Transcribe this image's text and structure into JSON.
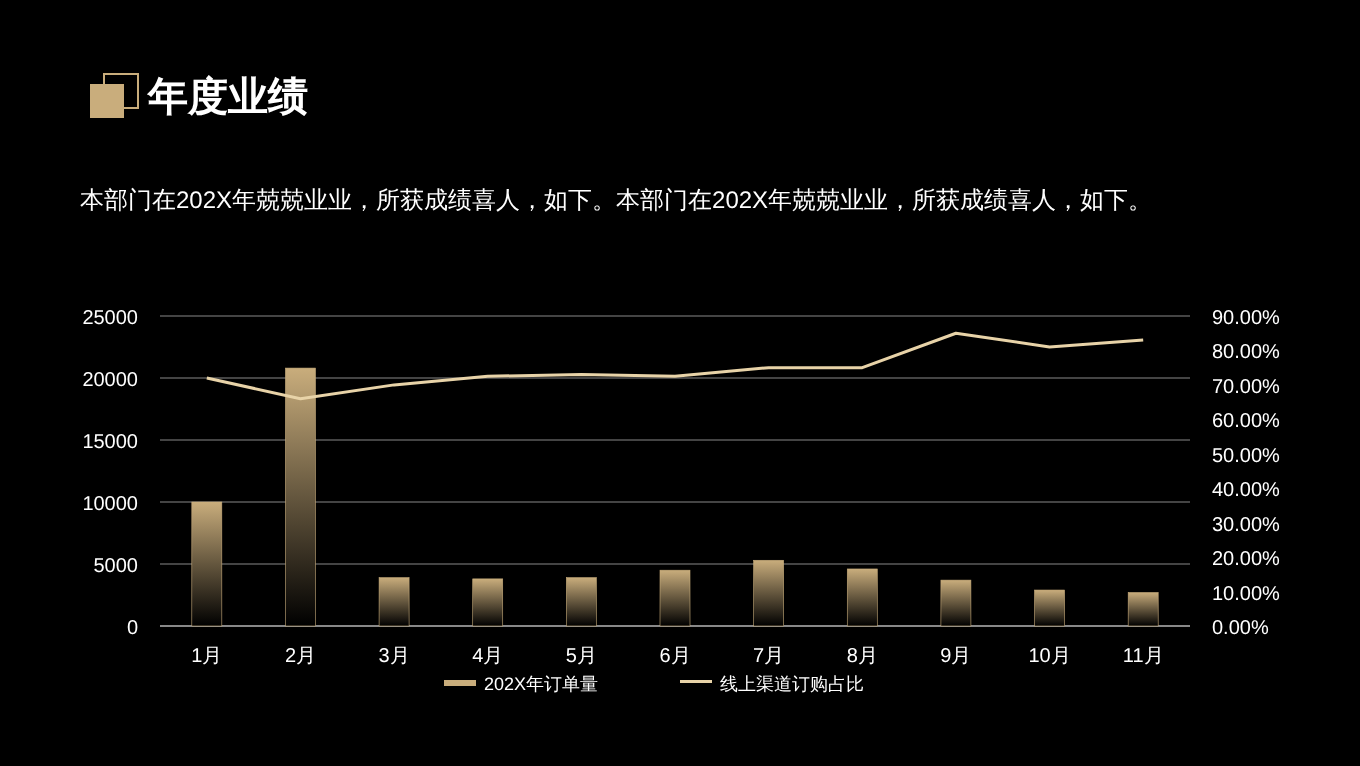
{
  "chart_data": {
    "type": "bar",
    "title": "年度业绩",
    "subtitle": "本部门在202X年兢兢业业，所获成绩喜人，如下。本部门在202X年兢兢业业，所获成绩喜人，如下。",
    "categories": [
      "1月",
      "2月",
      "3月",
      "4月",
      "5月",
      "6月",
      "7月",
      "8月",
      "9月",
      "10月",
      "11月"
    ],
    "series": [
      {
        "name": "202X年订单量",
        "color": "#c9ad7c",
        "values": [
          10000,
          20800,
          3900,
          3800,
          3900,
          4500,
          5300,
          4600,
          3700,
          2900,
          2700
        ]
      },
      {
        "name": "线上渠道订购占比",
        "type": "line",
        "axis": "y2",
        "color": "#e8d3a8",
        "values": [
          72,
          66,
          70,
          72.5,
          73,
          72.5,
          75,
          75,
          85,
          81,
          83
        ]
      }
    ],
    "ylim": [
      0,
      25000
    ],
    "yticks": [
      0,
      5000,
      10000,
      15000,
      20000,
      25000
    ],
    "y2lim": [
      0,
      90
    ],
    "y2ticks": [
      {
        "value": 0,
        "label": "0.00%"
      },
      {
        "value": 10,
        "label": "10.00%"
      },
      {
        "value": 20,
        "label": "20.00%"
      },
      {
        "value": 30,
        "label": "30.00%"
      },
      {
        "value": 40,
        "label": "40.00%"
      },
      {
        "value": 50,
        "label": "50.00%"
      },
      {
        "value": 60,
        "label": "60.00%"
      },
      {
        "value": 70,
        "label": "70.00%"
      },
      {
        "value": 80,
        "label": "80.00%"
      },
      {
        "value": 90,
        "label": "90.00%"
      }
    ],
    "grid": "y",
    "legend": "bottom",
    "marker": "none",
    "line_style": "solid"
  }
}
